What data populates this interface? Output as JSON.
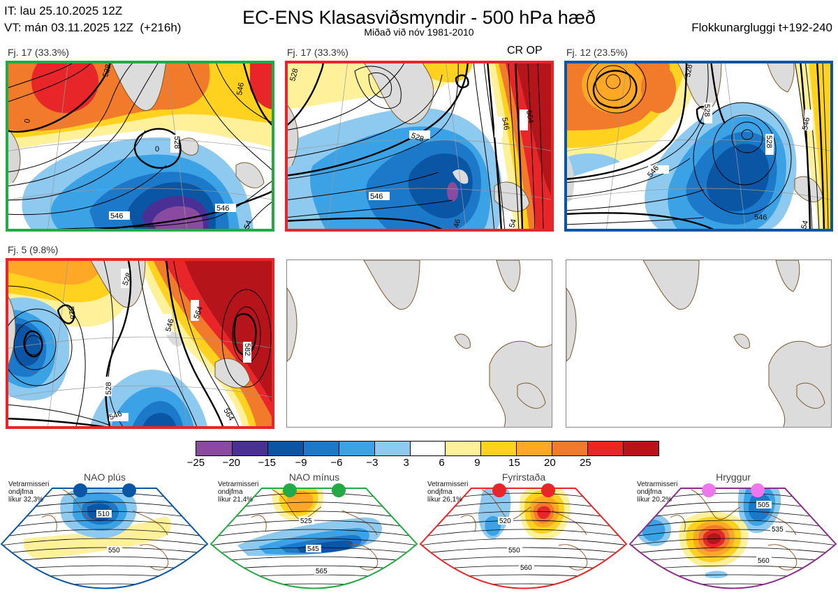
{
  "header": {
    "init_time": "IT: lau 25.10.2025 12Z",
    "valid_time": "VT: mán 03.11.2025 12Z",
    "lead": "(+216h)",
    "title": "EC-ENS Klasasviðsmyndir - 500 hPa hæð",
    "subtitle": "Miðað við nóv 1981-2010",
    "window": "Flokkunargluggi t+192-240"
  },
  "panels": [
    {
      "label": "Fj. 17 (33.3%)",
      "flag": "",
      "border": "#22aa44",
      "contours": [
        "528",
        "546",
        "0",
        "528",
        "546",
        "546",
        "54"
      ]
    },
    {
      "label": "Fj. 17 (33.3%)",
      "flag": "CR OP",
      "border": "#e8262a",
      "contours": [
        "528",
        "528",
        "546",
        "546",
        "564",
        "564",
        "54",
        "46"
      ]
    },
    {
      "label": "Fj. 12 (23.5%)",
      "flag": "",
      "border": "#0b56a4",
      "contours": [
        "528",
        "528",
        "546",
        "546",
        "546",
        "54",
        "528"
      ]
    },
    {
      "label": "Fj. 5 (9.8%)",
      "flag": "",
      "border": "#e8262a",
      "contours": [
        "528",
        "528",
        "546",
        "564",
        "582",
        "546",
        "564",
        "528"
      ]
    }
  ],
  "colorbar": {
    "colors": [
      "#8a4aa0",
      "#4a2f95",
      "#0b56a4",
      "#1c79c9",
      "#3ba2e5",
      "#8ec9ef",
      "#ffffff",
      "#fff19a",
      "#ffd21f",
      "#ffa825",
      "#f27a2b",
      "#e8262a",
      "#b5141b"
    ],
    "ticks": [
      "−25",
      "−20",
      "−15",
      "−9",
      "−6",
      "−3",
      "3",
      "6",
      "9",
      "15",
      "20",
      "25"
    ]
  },
  "regimes": [
    {
      "title": "NAO plús",
      "note": [
        "Vetrarmisseri",
        "ondjfma",
        "líkur 32,3%"
      ],
      "dot_color": "#0b56a4",
      "border": "#0b56a4",
      "contours": [
        "510",
        "550"
      ]
    },
    {
      "title": "NAO mínus",
      "note": [
        "Vetrarmisseri",
        "ondjfma",
        "líkur 21,4%"
      ],
      "dot_color": "#22aa44",
      "border": "#22aa44",
      "contours": [
        "525",
        "545",
        "565"
      ]
    },
    {
      "title": "Fyrirstaða",
      "note": [
        "Vetrarmisseri",
        "ondjfma",
        "líkur 26,1%"
      ],
      "dot_color": "#e8262a",
      "border": "#e8262a",
      "contours": [
        "520",
        "550",
        "560"
      ]
    },
    {
      "title": "Hryggur",
      "note": [
        "Vetrarmisseri",
        "ondjfma",
        "líkur 20,2%"
      ],
      "dot_color": "#ee77ee",
      "border": "#8b2e8b",
      "contours": [
        "505",
        "535",
        "560"
      ]
    }
  ]
}
